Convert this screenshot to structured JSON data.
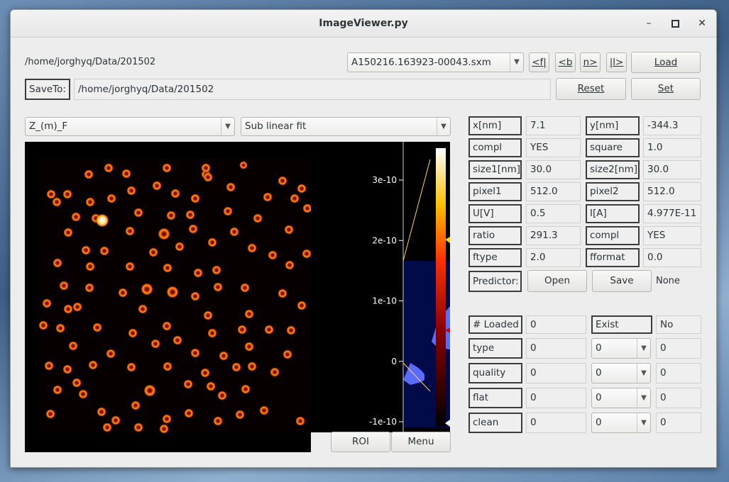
{
  "window": {
    "title": "ImageViewer.py"
  },
  "path_label": "/home/jorghyq/Data/201502",
  "file_select": "A150216.163923-00043.sxm",
  "nav": {
    "first": "<f|",
    "back": "<b",
    "next": "n>",
    "last": "|l>",
    "load": "Load"
  },
  "saveto": {
    "label": "SaveTo:",
    "value": "/home/jorghyq/Data/201502",
    "reset": "Reset",
    "set": "Set"
  },
  "channel_select": "Z_(m)_F",
  "process_select": "Sub linear fit",
  "colorbar": {
    "ticks": [
      "3e-10",
      "2e-10",
      "1e-10",
      "0",
      "-1e-10"
    ],
    "tick_values": [
      3e-10,
      2e-10,
      1e-10,
      0,
      -1e-10
    ]
  },
  "bottom_buttons": {
    "roi": "ROI",
    "menu": "Menu"
  },
  "params": [
    {
      "k1": "x[nm]",
      "v1": "7.1",
      "k2": "y[nm]",
      "v2": "-344.3"
    },
    {
      "k1": "compl",
      "v1": "YES",
      "k2": "square",
      "v2": "1.0"
    },
    {
      "k1": "size1[nm]",
      "v1": "30.0",
      "k2": "size2[nm]",
      "v2": "30.0"
    },
    {
      "k1": "pixel1",
      "v1": "512.0",
      "k2": "pixel2",
      "v2": "512.0"
    },
    {
      "k1": "U[V]",
      "v1": "0.5",
      "k2": "I[A]",
      "v2": "4.977E-11"
    },
    {
      "k1": "ratio",
      "v1": "291.3",
      "k2": "compl",
      "v2": "YES"
    },
    {
      "k1": "ftype",
      "v1": "2.0",
      "k2": "fformat",
      "v2": "0.0"
    }
  ],
  "predictor": {
    "label": "Predictor:",
    "open": "Open",
    "save": "Save",
    "status": "None"
  },
  "loaded": {
    "label": "# Loaded",
    "value": "0",
    "exist_label": "Exist",
    "exist_value": "No"
  },
  "attributes": [
    {
      "label": "type",
      "value": "0",
      "select": "0",
      "result": "0"
    },
    {
      "label": "quality",
      "value": "0",
      "select": "0",
      "result": "0"
    },
    {
      "label": "flat",
      "value": "0",
      "select": "0",
      "result": "0"
    },
    {
      "label": "clean",
      "value": "0",
      "select": "0",
      "result": "0"
    }
  ]
}
